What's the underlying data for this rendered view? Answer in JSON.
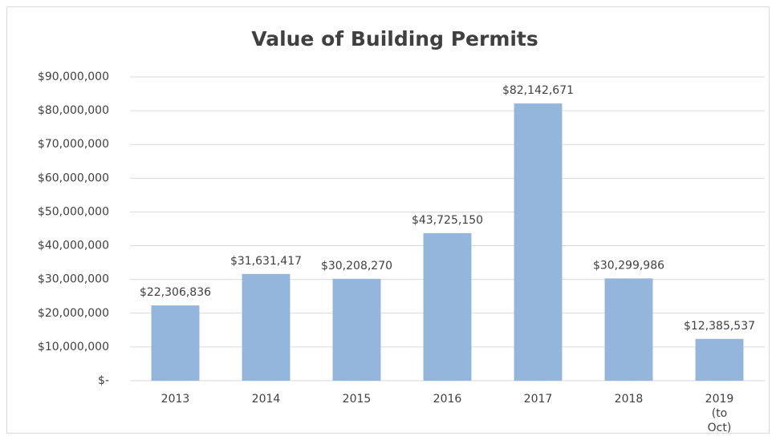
{
  "chart_data": {
    "type": "bar",
    "title": "Value of Building Permits",
    "categories": [
      "2013",
      "2014",
      "2015",
      "2016",
      "2017",
      "2018",
      "2019 (to Oct)"
    ],
    "values": [
      22306836,
      31631417,
      30208270,
      43725150,
      82142671,
      30299986,
      12385537
    ],
    "value_labels": [
      "$22,306,836",
      "$31,631,417",
      "$30,208,270",
      "$43,725,150",
      "$82,142,671",
      "$30,299,986",
      "$12,385,537"
    ],
    "color": "#94b6dc",
    "ylim": [
      0,
      90000000
    ],
    "yticks": [
      {
        "value": 0,
        "label": "$-"
      },
      {
        "value": 10000000,
        "label": "$10,000,000"
      },
      {
        "value": 20000000,
        "label": "$20,000,000"
      },
      {
        "value": 30000000,
        "label": "$30,000,000"
      },
      {
        "value": 40000000,
        "label": "$40,000,000"
      },
      {
        "value": 50000000,
        "label": "$50,000,000"
      },
      {
        "value": 60000000,
        "label": "$60,000,000"
      },
      {
        "value": 70000000,
        "label": "$70,000,000"
      },
      {
        "value": 80000000,
        "label": "$80,000,000"
      },
      {
        "value": 90000000,
        "label": "$90,000,000"
      }
    ],
    "grid": true
  }
}
